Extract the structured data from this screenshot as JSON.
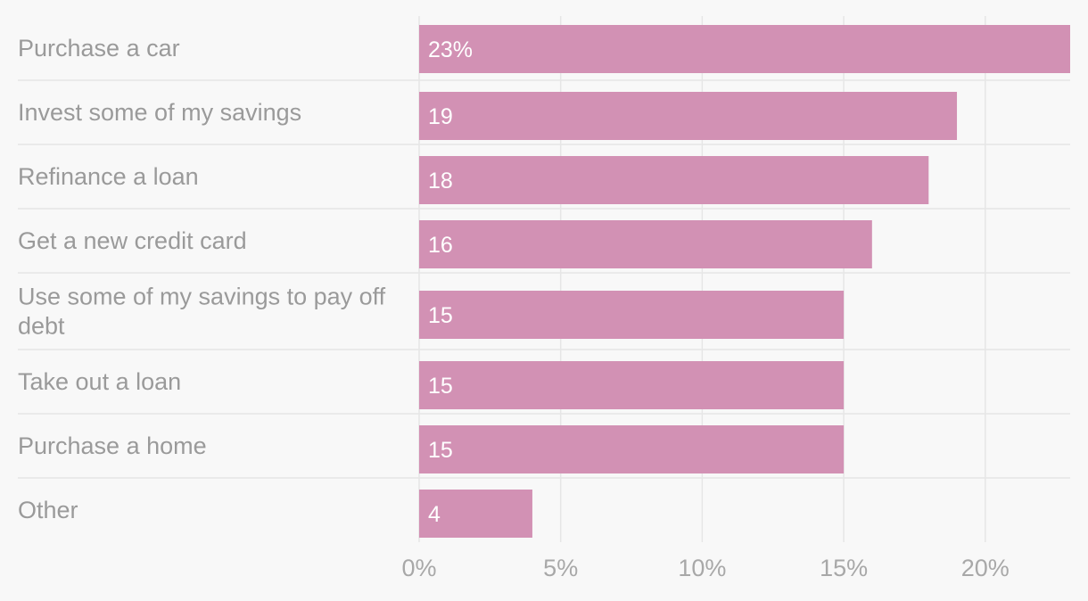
{
  "chart_data": {
    "type": "bar",
    "orientation": "horizontal",
    "categories": [
      [
        "Purchase a car"
      ],
      [
        "Invest some of my savings"
      ],
      [
        "Refinance a loan"
      ],
      [
        "Get a new credit card"
      ],
      [
        "Use some of my savings to pay off",
        "debt"
      ],
      [
        "Take out a loan"
      ],
      [
        "Purchase a home"
      ],
      [
        "Other"
      ]
    ],
    "values": [
      23,
      19,
      18,
      16,
      15,
      15,
      15,
      4
    ],
    "data_labels": [
      "23%",
      "19",
      "18",
      "16",
      "15",
      "15",
      "15",
      "4"
    ],
    "xlim": [
      0,
      23
    ],
    "xticks": [
      0,
      5,
      10,
      15,
      20
    ],
    "xtick_labels": [
      "0%",
      "5%",
      "10%",
      "15%",
      "20%"
    ],
    "grid": true,
    "bar_color": "#d291b4",
    "title": "",
    "xlabel": "",
    "ylabel": ""
  }
}
